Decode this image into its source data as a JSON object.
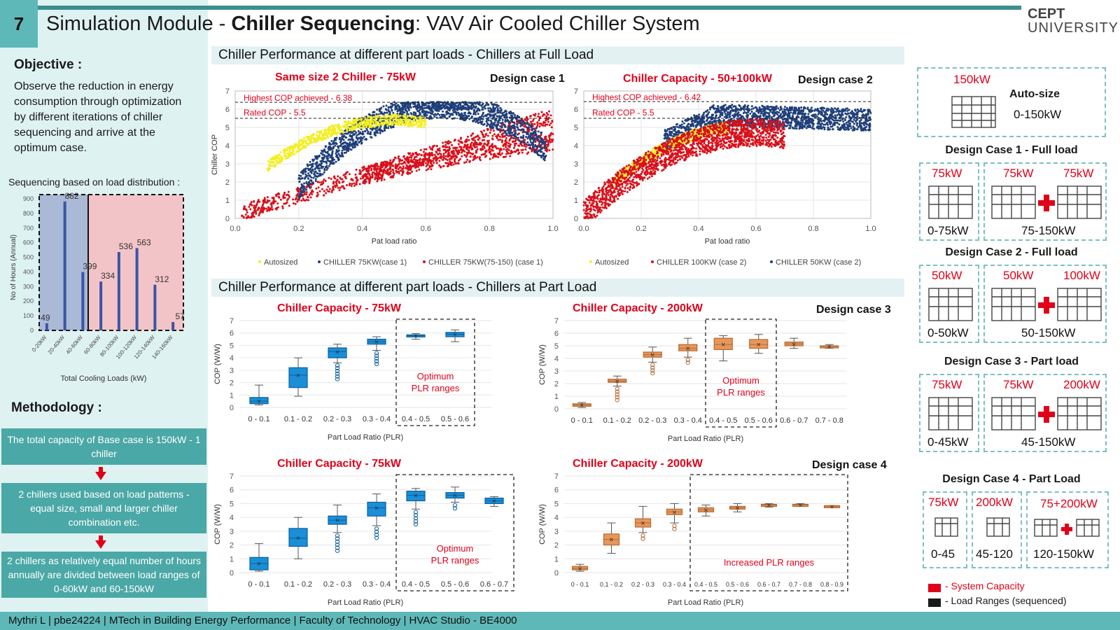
{
  "header": {
    "slide_number": "7",
    "title_prefix": "Simulation Module - ",
    "title_bold": "Chiller Sequencing",
    "title_suffix": ": VAV Air Cooled Chiller System",
    "logo_line1": "CEPT",
    "logo_line2": "UNIVERSITY"
  },
  "left": {
    "objective_title": "Objective :",
    "objective_text": "Observe the reduction in energy consumption through optimization by different iterations of chiller sequencing and arrive at the optimum case.",
    "sequencing_title": "Sequencing based on load distribution :",
    "methodology_title": "Methodology :",
    "methodology_steps": [
      "The total capacity of Base case is 150kW - 1 chiller",
      "2 chillers used based on load patterns - equal size, small and larger chiller combination etc.",
      "2 chillers as relatively equal number of hours annually are divided between load ranges of 0-60kW and 60-150kW"
    ]
  },
  "sections": {
    "full_load": "Chiller Performance at different part loads - Chillers at Full Load",
    "part_load": "Chiller Performance at different part loads - Chillers at Part Load"
  },
  "scatter_labels": {
    "c1_title": "Same size 2 Chiller - 75kW",
    "c1_case": "Design case 1",
    "c1_high": "Highest COP achieved - 6.38",
    "c1_rated": "Rated COP - 5.5",
    "c2_title": "Chiller Capacity - 50+100kW",
    "c2_case": "Design case 2",
    "c2_high": "Highest COP achieved - 6.42",
    "c2_rated": "Rated COP - 5.5",
    "xlabel": "Pat load ratio",
    "ylabel": "Chiller COP",
    "c1_legend": [
      "Autosized",
      "CHILLER 75KW(case 1)",
      "CHILLER 75KW(75-150) (case 1)"
    ],
    "c2_legend": [
      "Autosized",
      "CHILLER 100KW (case 2)",
      "CHILLER 50KW (case 2)"
    ]
  },
  "box_labels": {
    "b1_title": "Chiller Capacity - 75kW",
    "b2_title": "Chiller Capacity - 200kW",
    "b2_case": "Design case 3",
    "b3_title": "Chiller Capacity - 75kW",
    "b4_title": "Chiller Capacity - 200kW",
    "b4_case": "Design case 4",
    "optimum_l1": "Optimum",
    "optimum_l2": "PLR ranges",
    "increased": "Increased PLR ranges",
    "xlabel": "Part Load Ratio (PLR)",
    "ylabel": "COP (W/W)"
  },
  "right": {
    "auto": {
      "cap": "150kW",
      "label": "Auto-size",
      "range": "0-150kW"
    },
    "cases": [
      {
        "title": "Design Case 1 - Full load",
        "a_cap": "75kW",
        "a_rng": "0-75kW",
        "b_cap1": "75kW",
        "b_cap2": "75kW",
        "b_rng": "75-150kW"
      },
      {
        "title": "Design Case 2 - Full load",
        "a_cap": "50kW",
        "a_rng": "0-50kW",
        "b_cap1": "50kW",
        "b_cap2": "100kW",
        "b_rng": "50-150kW"
      },
      {
        "title": "Design Case 3 - Part load",
        "a_cap": "75kW",
        "a_rng": "0-45kW",
        "b_cap1": "75kW",
        "b_cap2": "200kW",
        "b_rng": "45-150kW"
      }
    ],
    "case4": {
      "title": "Design Case 4 - Part Load",
      "c1_cap": "75kW",
      "c1_rng": "0-45",
      "c2_cap": "200kW",
      "c2_rng": "45-120",
      "c3_cap": "75+200kW",
      "c3_rng": "120-150kW"
    },
    "legend_red": "- System Capacity",
    "legend_black": "- Load Ranges (sequenced)"
  },
  "footer": {
    "text": "Mythri L  |  pbe24224  |  MTech in Building Energy Performance  |  Faculty of Technology | HVAC Studio - BE4000"
  },
  "chart_data": [
    {
      "type": "bar",
      "categories": [
        "0-20kW",
        "20-40kW",
        "40-60kW",
        "60-80kW",
        "80-100kW",
        "100-120kW",
        "120-140kW",
        "140-160kW"
      ],
      "values": [
        49,
        882,
        399,
        334,
        536,
        563,
        312,
        57
      ],
      "xlabel": "Total Cooling Loads (kW)",
      "ylabel": "No of Hours (Annual)",
      "ylim": [
        0,
        900
      ],
      "yticks": [
        0,
        100,
        200,
        300,
        400,
        500,
        600,
        700,
        800,
        900
      ],
      "color": "#3b55a4"
    },
    {
      "type": "scatter",
      "title": "Same size 2 Chiller - 75kW",
      "xlabel": "Pat load ratio",
      "ylabel": "Chiller COP",
      "xlim": [
        0,
        1
      ],
      "ylim": [
        0,
        7
      ],
      "xticks": [
        "0.0",
        "0.2",
        "0.4",
        "0.6",
        "0.8",
        "1.0"
      ],
      "yticks": [
        0,
        1,
        2,
        3,
        4,
        5,
        6,
        7
      ],
      "reference_lines": {
        "highest_cop": 6.38,
        "rated_cop": 5.5
      },
      "series": [
        {
          "name": "Autosized",
          "color": "#f2ee22"
        },
        {
          "name": "CHILLER 75KW(case 1)",
          "color": "#1f3f7a"
        },
        {
          "name": "CHILLER 75KW(75-150) (case 1)",
          "color": "#d8101a"
        }
      ]
    },
    {
      "type": "scatter",
      "title": "Chiller Capacity - 50+100kW",
      "xlabel": "Pat load ratio",
      "ylabel": "Chiller COP",
      "xlim": [
        0,
        1
      ],
      "ylim": [
        0,
        7
      ],
      "xticks": [
        "0.0",
        "0.2",
        "0.4",
        "0.6",
        "0.8",
        "1.0"
      ],
      "yticks": [
        0,
        1,
        2,
        3,
        4,
        5,
        6,
        7
      ],
      "reference_lines": {
        "highest_cop": 6.42,
        "rated_cop": 5.5
      },
      "series": [
        {
          "name": "Autosized",
          "color": "#f2ee22"
        },
        {
          "name": "CHILLER 100KW (case 2)",
          "color": "#d8101a"
        },
        {
          "name": "CHILLER 50KW (case 2)",
          "color": "#1f3f7a"
        }
      ]
    },
    {
      "type": "box",
      "title": "Chiller Capacity - 75kW",
      "xlabel": "Part Load Ratio (PLR)",
      "ylabel": "COP (W/W)",
      "ylim": [
        0,
        7
      ],
      "color": "#1a8fd8",
      "categories": [
        "0 - 0.1",
        "0.1 - 0.2",
        "0.2 - 0.3",
        "0.3 - 0.4",
        "0.4 - 0.5",
        "0.5 - 0.6"
      ],
      "boxes": [
        [
          0.2,
          0.3,
          0.5,
          0.8,
          1.8
        ],
        [
          0.9,
          1.6,
          2.6,
          3.2,
          4.0
        ],
        [
          3.6,
          4.0,
          4.5,
          4.8,
          5.1
        ],
        [
          4.6,
          5.1,
          5.3,
          5.5,
          5.7
        ],
        [
          5.5,
          5.7,
          5.8,
          5.85,
          5.95
        ],
        [
          5.3,
          5.7,
          5.9,
          6.05,
          6.25
        ]
      ],
      "optimum_range": [
        4,
        5
      ]
    },
    {
      "type": "box",
      "title": "Chiller Capacity - 200kW",
      "xlabel": "Part Load Ratio (PLR)",
      "ylabel": "COP (W/W)",
      "ylim": [
        0,
        7
      ],
      "color": "#e8975a",
      "categories": [
        "0 - 0.1",
        "0.1 - 0.2",
        "0.2 - 0.3",
        "0.3 - 0.4",
        "0.4 - 0.5",
        "0.5 - 0.6",
        "0.6 - 0.7",
        "0.7 - 0.8"
      ],
      "boxes": [
        [
          0.1,
          0.2,
          0.3,
          0.4,
          0.5
        ],
        [
          1.8,
          2.1,
          2.2,
          2.35,
          2.6
        ],
        [
          3.7,
          4.1,
          4.3,
          4.5,
          4.9
        ],
        [
          4.1,
          4.6,
          4.8,
          5.1,
          5.6
        ],
        [
          3.8,
          4.7,
          5.1,
          5.6,
          5.8
        ],
        [
          4.4,
          4.8,
          5.1,
          5.5,
          5.9
        ],
        [
          4.8,
          5.0,
          5.15,
          5.3,
          5.6
        ],
        [
          4.8,
          4.9,
          4.95,
          5.0,
          5.1
        ]
      ],
      "optimum_range": [
        4,
        5
      ]
    },
    {
      "type": "box",
      "title": "Chiller Capacity - 75kW",
      "xlabel": "Part Load Ratio (PLR)",
      "ylabel": "COP (W/W)",
      "ylim": [
        0,
        7
      ],
      "color": "#1a8fd8",
      "categories": [
        "0 - 0.1",
        "0.1 - 0.2",
        "0.2 - 0.3",
        "0.3 - 0.4",
        "0.4 - 0.5",
        "0.5 - 0.6",
        "0.6 - 0.7"
      ],
      "boxes": [
        [
          0.1,
          0.2,
          0.65,
          1.1,
          2.1
        ],
        [
          1.0,
          1.9,
          2.5,
          3.2,
          4.0
        ],
        [
          2.9,
          3.5,
          3.8,
          4.1,
          4.9
        ],
        [
          3.4,
          4.1,
          4.7,
          5.1,
          5.7
        ],
        [
          4.6,
          5.2,
          5.6,
          5.9,
          6.1
        ],
        [
          5.1,
          5.4,
          5.6,
          5.8,
          6.2
        ],
        [
          4.8,
          5.0,
          5.2,
          5.4,
          5.5
        ]
      ],
      "optimum_range": [
        4,
        6
      ]
    },
    {
      "type": "box",
      "title": "Chiller Capacity - 200kW",
      "xlabel": "Part Load Ratio (PLR)",
      "ylabel": "COP (W/W)",
      "ylim": [
        0,
        7
      ],
      "color": "#e8975a",
      "categories": [
        "0 - 0.1",
        "0.1 - 0.2",
        "0.2 - 0.3",
        "0.3 - 0.4",
        "0.4 - 0.5",
        "0.5 - 0.6",
        "0.6 - 0.7",
        "0.7 - 0.8",
        "0.8 - 0.9"
      ],
      "boxes": [
        [
          0.1,
          0.2,
          0.3,
          0.45,
          0.6
        ],
        [
          1.4,
          2.0,
          2.4,
          2.8,
          3.6
        ],
        [
          2.9,
          3.3,
          3.6,
          3.9,
          4.8
        ],
        [
          3.6,
          4.2,
          4.4,
          4.6,
          5.0
        ],
        [
          4.1,
          4.4,
          4.55,
          4.7,
          4.9
        ],
        [
          4.4,
          4.6,
          4.7,
          4.8,
          5.0
        ],
        [
          4.75,
          4.85,
          4.9,
          4.95,
          5.0
        ],
        [
          4.8,
          4.85,
          4.9,
          4.95,
          5.0
        ],
        [
          4.75,
          4.8,
          4.8,
          4.85,
          4.85
        ]
      ],
      "optimum_range": [
        4,
        8
      ]
    }
  ]
}
